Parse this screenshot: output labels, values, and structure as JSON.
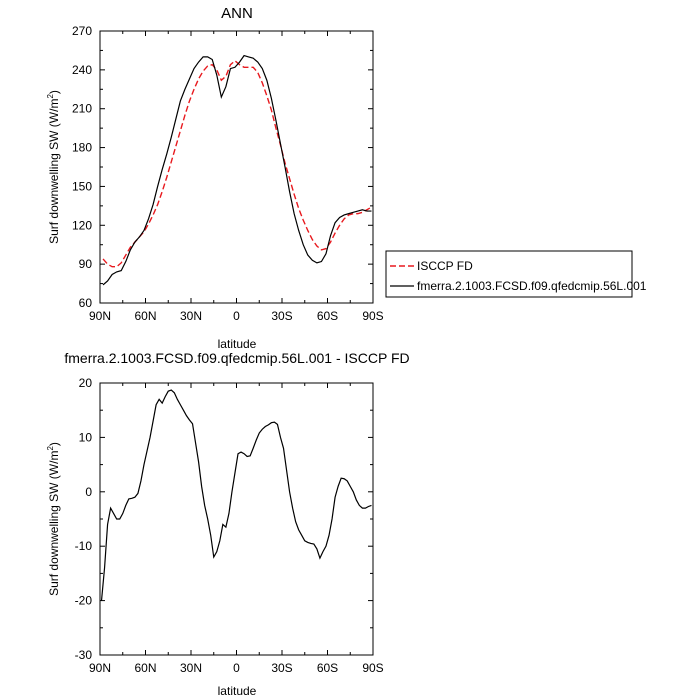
{
  "chart_data": [
    {
      "type": "line",
      "title": "ANN",
      "xlabel": "latitude",
      "ylabel": "Surf downwelling SW (W/m²)",
      "ylabel_main": "Surf downwelling SW (W/m",
      "ylabel_sup": "2",
      "ylabel_tail": ")",
      "xlim": [
        90,
        -90
      ],
      "ylim": [
        60,
        270
      ],
      "x_ticks": [
        90,
        60,
        30,
        0,
        -30,
        -60,
        -90
      ],
      "x_tick_labels": [
        "90N",
        "60N",
        "30N",
        "0",
        "30S",
        "60S",
        "90S"
      ],
      "y_ticks": [
        60,
        90,
        120,
        150,
        180,
        210,
        240,
        270
      ],
      "y_tick_labels": [
        "60",
        "90",
        "120",
        "150",
        "180",
        "210",
        "240",
        "270"
      ],
      "legend": "right",
      "series": [
        {
          "name": "ISCCP FD",
          "color": "#e8191e",
          "dash": "dashed",
          "x": [
            88,
            85,
            82,
            79,
            76,
            73,
            70,
            67,
            64,
            61,
            58,
            55,
            52,
            49,
            46,
            43,
            40,
            37,
            34,
            31,
            28,
            25,
            22,
            19,
            16,
            13,
            10,
            7,
            4,
            1,
            -2,
            -5,
            -8,
            -11,
            -14,
            -17,
            -20,
            -23,
            -26,
            -29,
            -32,
            -35,
            -38,
            -41,
            -44,
            -47,
            -50,
            -53,
            -56,
            -59,
            -62,
            -65,
            -68,
            -71,
            -74,
            -77,
            -80,
            -83,
            -86,
            -89
          ],
          "y": [
            94,
            90,
            88,
            88,
            91,
            97,
            103,
            107,
            111,
            115,
            121,
            128,
            136,
            146,
            157,
            169,
            181,
            193,
            205,
            216,
            225,
            233,
            239,
            243,
            244,
            240,
            232,
            235,
            244,
            247,
            244,
            242,
            242,
            242,
            238,
            230,
            220,
            209,
            195,
            182,
            168,
            156,
            144,
            133,
            124,
            116,
            109,
            104,
            101,
            102,
            107,
            114,
            120,
            125,
            128,
            129,
            129,
            130,
            132,
            134
          ]
        },
        {
          "name": "fmerra.2.1003.FCSD.f09.qfedcmip.56L.001",
          "color": "#000000",
          "dash": "solid",
          "x": [
            88,
            85,
            82,
            79,
            76,
            73,
            70,
            67,
            64,
            61,
            58,
            55,
            52,
            49,
            46,
            43,
            40,
            37,
            34,
            31,
            28,
            25,
            22,
            19,
            16,
            13,
            10,
            7,
            4,
            1,
            -2,
            -5,
            -8,
            -11,
            -14,
            -17,
            -20,
            -23,
            -26,
            -29,
            -32,
            -35,
            -38,
            -41,
            -44,
            -47,
            -50,
            -53,
            -56,
            -59,
            -62,
            -65,
            -68,
            -71,
            -74,
            -77,
            -80,
            -83,
            -86,
            -89
          ],
          "y": [
            74,
            77,
            82,
            84,
            85,
            92,
            101,
            107,
            111,
            116,
            125,
            136,
            150,
            163,
            175,
            188,
            202,
            216,
            225,
            233,
            241,
            246,
            250,
            250,
            248,
            236,
            219,
            227,
            241,
            242,
            246,
            251,
            250,
            249,
            246,
            241,
            232,
            218,
            201,
            183,
            165,
            146,
            129,
            116,
            105,
            97,
            93,
            91,
            92,
            98,
            112,
            122,
            126,
            128,
            129,
            130,
            131,
            132,
            131,
            131
          ]
        }
      ]
    },
    {
      "type": "line",
      "title": "fmerra.2.1003.FCSD.f09.qfedcmip.56L.001 - ISCCP FD",
      "xlabel": "latitude",
      "ylabel": "Surf downwelling SW (W/m²)",
      "ylabel_main": "Surf downwelling SW (W/m",
      "ylabel_sup": "2",
      "ylabel_tail": ")",
      "xlim": [
        90,
        -90
      ],
      "ylim": [
        -30,
        20
      ],
      "x_ticks": [
        90,
        60,
        30,
        0,
        -30,
        -60,
        -90
      ],
      "x_tick_labels": [
        "90N",
        "60N",
        "30N",
        "0",
        "30S",
        "60S",
        "90S"
      ],
      "y_ticks": [
        -30,
        -20,
        -10,
        0,
        10,
        20
      ],
      "y_tick_labels": [
        "-30",
        "-20",
        "-10",
        "0",
        "10",
        "20"
      ],
      "series": [
        {
          "color": "#000000",
          "dash": "solid",
          "x": [
            89,
            87,
            85,
            83,
            81,
            79,
            77,
            75,
            73,
            71,
            69,
            67,
            65,
            63,
            61,
            59,
            57,
            55,
            53,
            51,
            49,
            47,
            45,
            43,
            41,
            39,
            37,
            35,
            33,
            31,
            29,
            27,
            25,
            23,
            21,
            19,
            17,
            15,
            13,
            11,
            9,
            7,
            5,
            3,
            1,
            -1,
            -3,
            -5,
            -7,
            -9,
            -11,
            -13,
            -15,
            -17,
            -19,
            -21,
            -23,
            -25,
            -27,
            -29,
            -31,
            -33,
            -35,
            -37,
            -39,
            -41,
            -43,
            -45,
            -47,
            -49,
            -51,
            -53,
            -55,
            -57,
            -59,
            -61,
            -63,
            -65,
            -67,
            -69,
            -71,
            -73,
            -75,
            -77,
            -79,
            -81,
            -83,
            -85,
            -87,
            -89
          ],
          "y": [
            -20,
            -14,
            -6,
            -3,
            -4,
            -5,
            -5,
            -4,
            -2.5,
            -1.3,
            -1.2,
            -1,
            -0.3,
            2,
            5,
            7.5,
            10,
            13,
            16,
            17,
            16.3,
            17.5,
            18.5,
            18.7,
            18.2,
            17,
            16,
            15,
            14,
            13.2,
            12.5,
            9,
            5.5,
            1,
            -2.5,
            -5,
            -8,
            -12,
            -11,
            -9,
            -6,
            -6.5,
            -4,
            0,
            3.5,
            7,
            7.3,
            7,
            6.5,
            6.6,
            8,
            9.5,
            10.8,
            11.5,
            12,
            12.3,
            12.7,
            12.8,
            12.4,
            10,
            8,
            4,
            0,
            -3,
            -5.5,
            -7,
            -8,
            -9,
            -9.3,
            -9.5,
            -9.6,
            -10.5,
            -12.2,
            -11,
            -10,
            -8,
            -5,
            -1,
            1,
            2.5,
            2.4,
            2,
            1,
            0,
            -1.5,
            -2.5,
            -3,
            -3,
            -2.7,
            -2.5
          ]
        }
      ]
    }
  ]
}
